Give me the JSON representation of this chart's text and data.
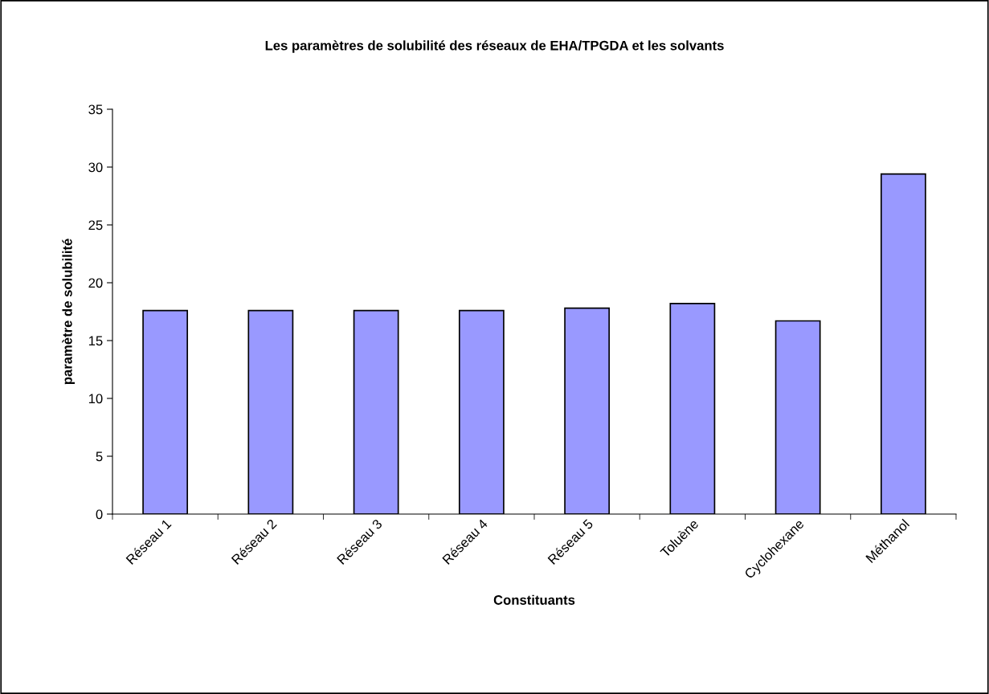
{
  "chart_data": {
    "type": "bar",
    "title": "Les paramètres de solubilité des réseaux de EHA/TPGDA et les solvants",
    "xlabel": "Constituants",
    "ylabel": "paramètre de solubilité",
    "categories": [
      "Réseau 1",
      "Réseau 2",
      "Réseau 3",
      "Réseau 4",
      "Réseau 5",
      "Toluène",
      "Cyclohexane",
      "Méthanol"
    ],
    "values": [
      17.6,
      17.6,
      17.6,
      17.6,
      17.8,
      18.2,
      16.7,
      29.4
    ],
    "color": "#9999ff",
    "ylim": [
      0,
      35
    ],
    "yticks": [
      0,
      5,
      10,
      15,
      20,
      25,
      30,
      35
    ],
    "grid": false,
    "legend": false
  }
}
